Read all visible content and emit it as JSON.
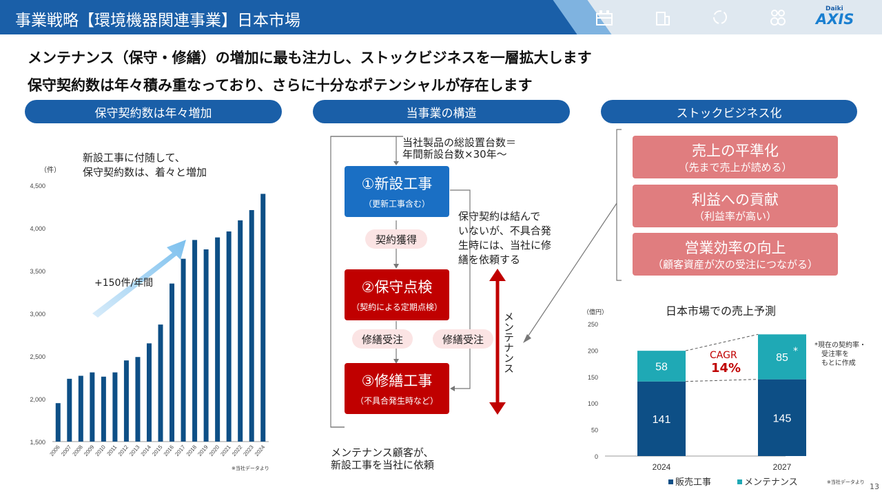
{
  "header": {
    "title": "事業戦略【環境機器関連事業】日本市場",
    "logo_top": "Daiki",
    "logo_bottom": "AXIS"
  },
  "headlines": [
    "メンテナンス（保守・修繕）の増加に最も注力し、ストックビジネスを一層拡大します",
    "保守契約数は年々積み重なっており、さらに十分なポテンシャルが存在します"
  ],
  "sections": {
    "left": "保守契約数は年々増加",
    "middle": "当事業の構造",
    "right": "ストックビジネス化"
  },
  "left_panel": {
    "note_line1": "新設工事に付随して、",
    "note_line2": "保守契約数は、着々と増加",
    "unit": "（件）",
    "growth_label": "+150件/年間",
    "source": "※当社データより"
  },
  "middle_panel": {
    "top_note_line1": "当社製品の総設置台数＝",
    "top_note_line2": "年間新設台数×30年〜",
    "box1_main": "①新設工事",
    "box1_sub": "（更新工事含む）",
    "box2_main": "②保守点検",
    "box2_sub": "（契約による定期点検）",
    "box3_main": "③修繕工事",
    "box3_sub": "（不具合発生時など）",
    "tag_contract": "契約獲得",
    "tag_repair_left": "修繕受注",
    "tag_repair_right": "修繕受注",
    "side_note": [
      "保守契約は結んで",
      "いないが、不具合発",
      "生時には、当社に修",
      "繕を依頼する"
    ],
    "maintenance_vertical": "メンテナンス",
    "bottom_note_line1": "メンテナンス顧客が、",
    "bottom_note_line2": "新設工事を当社に依頼"
  },
  "right_panel": {
    "benefits": [
      {
        "main": "売上の平準化",
        "sub": "（先まで売上が読める）"
      },
      {
        "main": "利益への貢献",
        "sub": "（利益率が高い）"
      },
      {
        "main": "営業効率の向上",
        "sub": "（顧客資産が次の受注につながる）"
      }
    ],
    "forecast_title": "日本市場での売上予測",
    "forecast_unit": "（億円）",
    "cagr_label": "CAGR",
    "cagr_value": "14%",
    "asterisk": "*",
    "footnote": [
      "*現在の契約率・",
      "受注率を",
      "もとに作成"
    ],
    "source": "※当社データより"
  },
  "colors": {
    "brand_blue": "#1a5fa8",
    "box_blue": "#1a6fc4",
    "box_red": "#c00000",
    "pink": "#e07d7f",
    "sales_navy": "#0d4f86",
    "maint_teal": "#1fa9b5",
    "arrow_red": "#c00000"
  },
  "page_number": "13",
  "chart_data": [
    {
      "type": "bar",
      "title": "",
      "ylabel": "（件）",
      "categories": [
        "2006",
        "2007",
        "2008",
        "2009",
        "2010",
        "2011",
        "2012",
        "2013",
        "2014",
        "2015",
        "2016",
        "2017",
        "2018",
        "2019",
        "2020",
        "2021",
        "2022",
        "2023",
        "2024"
      ],
      "values": [
        1950,
        2235,
        2270,
        2310,
        2260,
        2310,
        2450,
        2490,
        2650,
        2870,
        3350,
        3640,
        3860,
        3750,
        3890,
        3960,
        4090,
        4210,
        4400
      ],
      "ylim": [
        1500,
        4500
      ],
      "yticks": [
        "1,500",
        "2,000",
        "2,500",
        "3,000",
        "3,500",
        "4,000",
        "4,500"
      ],
      "ytick_values": [
        1500,
        2000,
        2500,
        3000,
        3500,
        4000,
        4500
      ],
      "grid": false
    },
    {
      "type": "bar",
      "stacked": true,
      "title": "日本市場での売上予測",
      "ylabel": "（億円）",
      "categories": [
        "2024",
        "2027"
      ],
      "series": [
        {
          "name": "販売工事",
          "values": [
            141,
            145
          ],
          "color": "#0d4f86"
        },
        {
          "name": "メンテナンス",
          "values": [
            58,
            85
          ],
          "color": "#1fa9b5"
        }
      ],
      "ylim": [
        0,
        250
      ],
      "yticks": [
        "0",
        "50",
        "100",
        "150",
        "200",
        "250"
      ],
      "ytick_values": [
        0,
        50,
        100,
        150,
        200,
        250
      ],
      "legend": "bottom"
    }
  ]
}
